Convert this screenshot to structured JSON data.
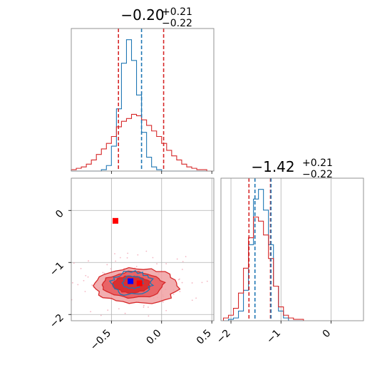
{
  "chart_data": {
    "type": "corner",
    "series_colors": {
      "blue": "#1f77b4",
      "red": "#d62728",
      "marker_blue": "#0000ff",
      "marker_red": "#ff0000",
      "scatter": "#f4b6c2"
    },
    "panels": [
      {
        "id": "hist_x",
        "title": {
          "main": "−0.20",
          "sup": "+0.21",
          "sub": "−0.22"
        },
        "xlim": [
          -0.9,
          0.52
        ],
        "bin_edges": [
          -0.9,
          -0.85,
          -0.8,
          -0.75,
          -0.7,
          -0.65,
          -0.6,
          -0.55,
          -0.5,
          -0.45,
          -0.4,
          -0.35,
          -0.3,
          -0.25,
          -0.2,
          -0.15,
          -0.1,
          -0.05,
          0.0,
          0.05,
          0.1,
          0.15,
          0.2,
          0.25,
          0.3,
          0.35,
          0.4,
          0.45,
          0.5
        ],
        "series": [
          {
            "color": "blue",
            "values": [
              0,
              0,
              0,
              0,
              0,
              0,
              0.01,
              0.04,
              0.18,
              0.45,
              0.78,
              0.95,
              0.8,
              0.55,
              0.28,
              0.1,
              0.03,
              0.01,
              0,
              0,
              0,
              0,
              0,
              0,
              0,
              0,
              0,
              0
            ]
          },
          {
            "color": "red",
            "values": [
              0.01,
              0.02,
              0.03,
              0.05,
              0.08,
              0.12,
              0.16,
              0.2,
              0.25,
              0.32,
              0.36,
              0.38,
              0.41,
              0.4,
              0.37,
              0.33,
              0.29,
              0.25,
              0.2,
              0.15,
              0.11,
              0.08,
              0.05,
              0.03,
              0.02,
              0.01,
              0.01,
              0.0
            ]
          }
        ],
        "vlines": [
          {
            "x": -0.43,
            "color": "red"
          },
          {
            "x": 0.02,
            "color": "red"
          },
          {
            "x": -0.2,
            "color": "blue"
          }
        ]
      },
      {
        "id": "hist_y",
        "title": {
          "main": "−1.42",
          "sup": "+0.21",
          "sub": "−0.22"
        },
        "xlim": [
          -2.2,
          0.65
        ],
        "xticks": [
          -2,
          -1,
          0
        ],
        "xtick_labels": [
          "−2",
          "−1",
          "0"
        ],
        "bin_edges": [
          -2.15,
          -2.05,
          -1.95,
          -1.85,
          -1.75,
          -1.65,
          -1.55,
          -1.45,
          -1.35,
          -1.25,
          -1.15,
          -1.05,
          -0.95,
          -0.85,
          -0.75,
          -0.65,
          -0.55
        ],
        "series": [
          {
            "color": "blue",
            "values": [
              0,
              0.01,
              0.02,
              0.07,
              0.22,
              0.55,
              0.88,
              0.95,
              0.8,
              0.55,
              0.25,
              0.07,
              0.02,
              0,
              0,
              0
            ]
          },
          {
            "color": "red",
            "values": [
              0.02,
              0.04,
              0.09,
              0.2,
              0.38,
              0.6,
              0.75,
              0.72,
              0.62,
              0.45,
              0.25,
              0.1,
              0.04,
              0.02,
              0.01,
              0.01
            ]
          }
        ],
        "vlines": [
          {
            "x": -1.64,
            "color": "red"
          },
          {
            "x": -1.21,
            "color": "red"
          },
          {
            "x": -1.52,
            "color": "blue"
          },
          {
            "x": -1.2,
            "color": "blue"
          }
        ]
      },
      {
        "id": "joint",
        "xlim": [
          -0.9,
          0.52
        ],
        "ylim": [
          -2.12,
          0.62
        ],
        "xticks": [
          -0.5,
          0.0,
          0.5
        ],
        "xtick_labels": [
          "−0.5",
          "0.0",
          "0.5"
        ],
        "yticks": [
          -2,
          -1,
          0
        ],
        "ytick_labels": [
          "−2",
          "−1",
          "0"
        ],
        "grid": true,
        "red_contours": [
          {
            "cx": -0.25,
            "cy": -1.45,
            "rx": 0.42,
            "ry": 0.34,
            "level": "outer"
          },
          {
            "cx": -0.28,
            "cy": -1.43,
            "rx": 0.3,
            "ry": 0.25,
            "level": "middle"
          },
          {
            "cx": -0.3,
            "cy": -1.42,
            "rx": 0.18,
            "ry": 0.16,
            "level": "inner"
          }
        ],
        "blue_contours": [
          {
            "cx": -0.3,
            "cy": -1.4,
            "rx": 0.2,
            "ry": 0.22
          },
          {
            "cx": -0.29,
            "cy": -1.38,
            "rx": 0.1,
            "ry": 0.12
          }
        ],
        "markers": [
          {
            "x": -0.46,
            "y": -0.2,
            "color": "marker_red"
          },
          {
            "x": -0.22,
            "y": -1.4,
            "color": "marker_red"
          },
          {
            "x": -0.31,
            "y": -1.36,
            "color": "marker_blue"
          }
        ]
      }
    ]
  }
}
